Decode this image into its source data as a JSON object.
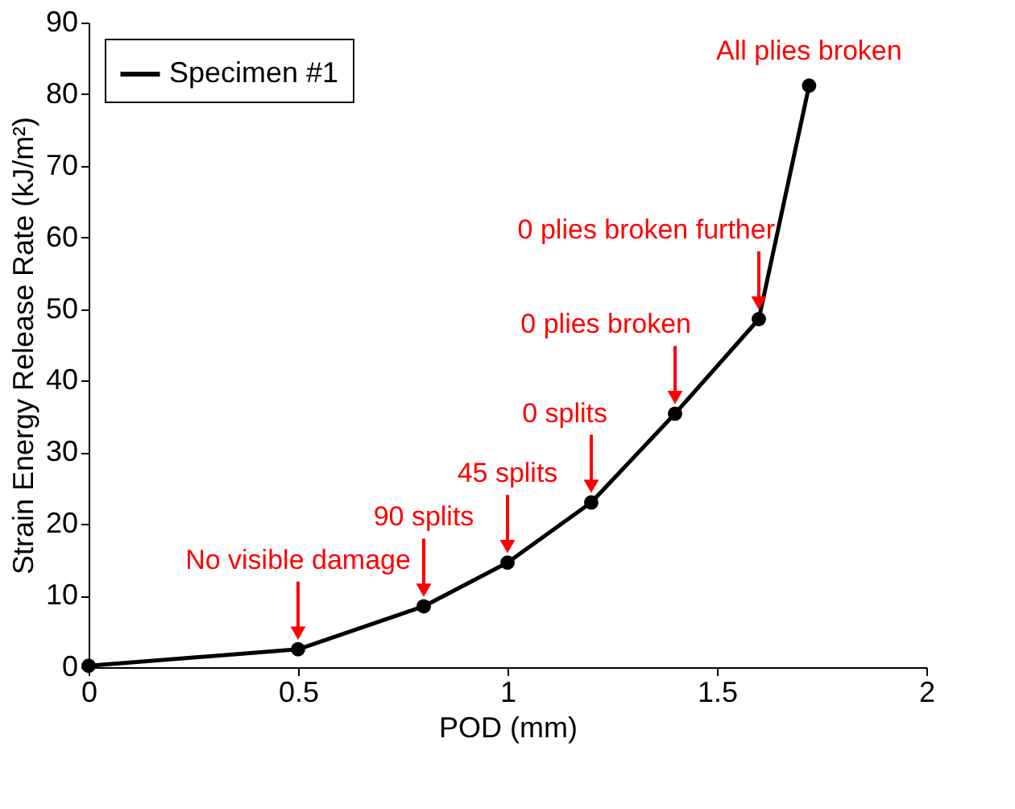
{
  "chart_data": {
    "type": "line",
    "xlabel": "POD (mm)",
    "ylabel": "Strain Energy Release Rate (kJ/m²)",
    "x": [
      0,
      0.5,
      0.8,
      1.0,
      1.2,
      1.4,
      1.6,
      1.72
    ],
    "series": [
      {
        "name": "Specimen #1",
        "color": "#000000",
        "values": [
          0.2,
          2.5,
          8.5,
          14.6,
          23.0,
          35.4,
          48.6,
          81.2
        ]
      }
    ],
    "xlim": [
      0,
      2
    ],
    "xticks": [
      0,
      0.5,
      1,
      1.5,
      2
    ],
    "ylim": [
      0,
      90
    ],
    "yticks": [
      0,
      10,
      20,
      30,
      40,
      50,
      60,
      70,
      80,
      90
    ],
    "grid": false,
    "legend": "top left",
    "marker": "circle",
    "line_style": "solid",
    "annotations": [
      {
        "text": "No visible damage",
        "x": 0.5,
        "y": 2.5
      },
      {
        "text": "90 splits",
        "x": 0.8,
        "y": 8.5
      },
      {
        "text": "45 splits",
        "x": 1.0,
        "y": 14.6
      },
      {
        "text": "0 splits",
        "x": 1.2,
        "y": 23.0
      },
      {
        "text": "0 plies broken",
        "x": 1.4,
        "y": 35.4
      },
      {
        "text": "0 plies broken further",
        "x": 1.6,
        "y": 48.6
      },
      {
        "text": "All plies broken",
        "x": 1.72,
        "y": 81.2
      }
    ]
  }
}
